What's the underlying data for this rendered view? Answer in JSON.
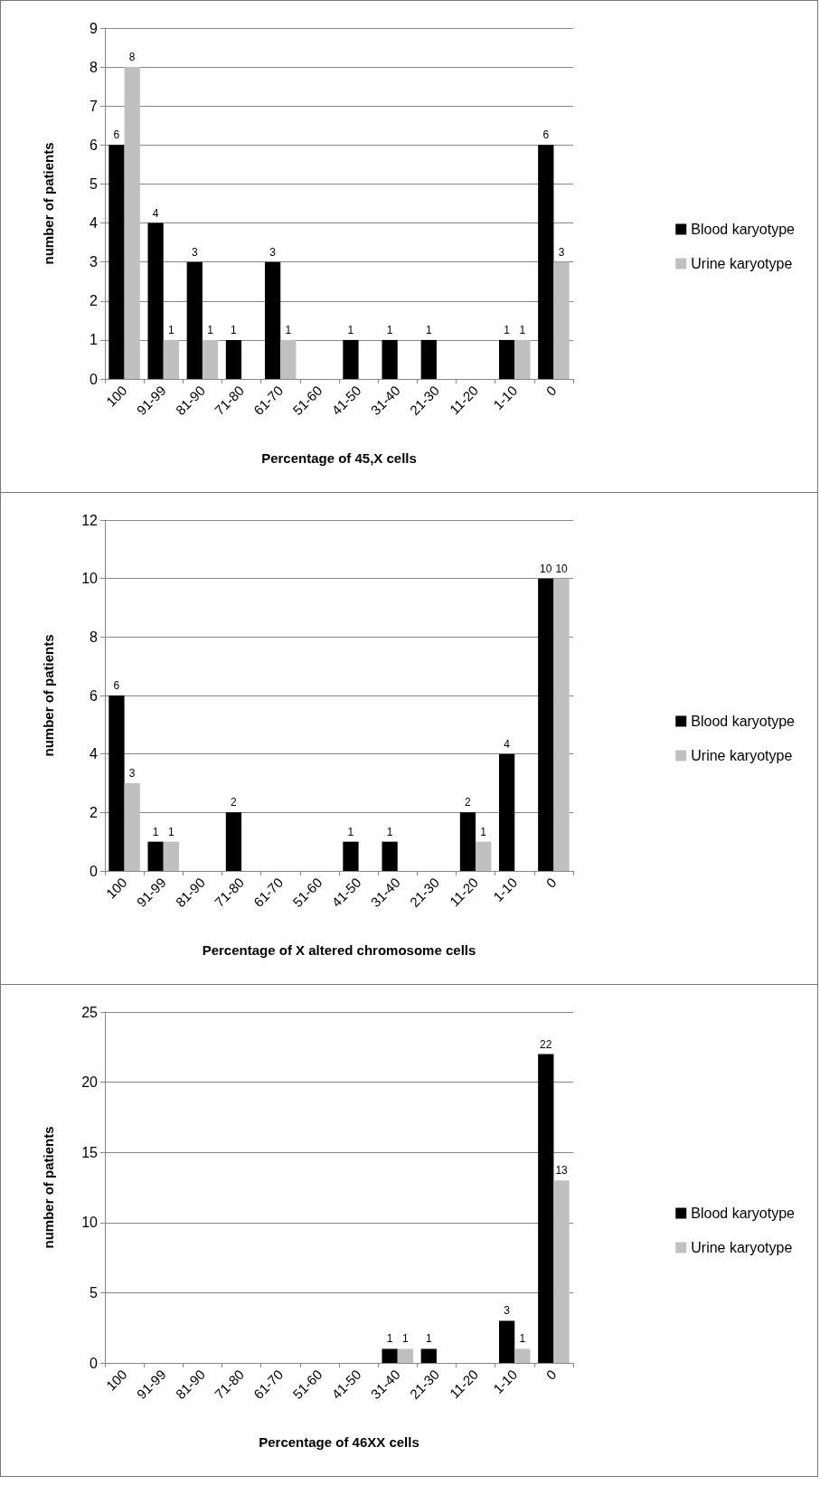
{
  "chart_data": [
    {
      "type": "bar",
      "xlabel": "Percentage of 45,X cells",
      "ylabel": "number of patients",
      "categories": [
        "100",
        "91-99",
        "81-90",
        "71-80",
        "61-70",
        "51-60",
        "41-50",
        "31-40",
        "21-30",
        "11-20",
        "1-10",
        "0"
      ],
      "ylim": [
        0,
        9
      ],
      "yticks": [
        0,
        1,
        2,
        3,
        4,
        5,
        6,
        7,
        8,
        9
      ],
      "grid": "y",
      "legend": "right",
      "series": [
        {
          "name": "Blood karyotype",
          "color": "#000000",
          "values": [
            6,
            4,
            3,
            1,
            3,
            0,
            1,
            1,
            1,
            0,
            1,
            6
          ],
          "value_labels": [
            "6",
            "4",
            "3",
            "1",
            "3",
            null,
            "1",
            "1",
            "1",
            null,
            "1",
            "6"
          ]
        },
        {
          "name": "Urine karyotype",
          "color": "#c0c0c0",
          "values": [
            8,
            1,
            1,
            0,
            1,
            0,
            0,
            0,
            0,
            0,
            1,
            3
          ],
          "value_labels": [
            "8",
            "1",
            "1",
            null,
            "1",
            null,
            null,
            null,
            null,
            null,
            "1",
            "3"
          ]
        }
      ]
    },
    {
      "type": "bar",
      "xlabel": "Percentage of X altered chromosome cells",
      "ylabel": "number of patients",
      "categories": [
        "100",
        "91-99",
        "81-90",
        "71-80",
        "61-70",
        "51-60",
        "41-50",
        "31-40",
        "21-30",
        "11-20",
        "1-10",
        "0"
      ],
      "ylim": [
        0,
        12
      ],
      "yticks": [
        0,
        2,
        4,
        6,
        8,
        10,
        12
      ],
      "grid": "y",
      "legend": "right",
      "series": [
        {
          "name": "Blood karyotype",
          "color": "#000000",
          "values": [
            6,
            1,
            0,
            2,
            0,
            0,
            1,
            1,
            0,
            2,
            4,
            10
          ],
          "value_labels": [
            "6",
            "1",
            null,
            "2",
            null,
            null,
            "1",
            "1",
            null,
            "2",
            "4",
            "10"
          ]
        },
        {
          "name": "Urine karyotype",
          "color": "#c0c0c0",
          "values": [
            3,
            1,
            0,
            0,
            0,
            0,
            0,
            0,
            0,
            1,
            0,
            10
          ],
          "value_labels": [
            "3",
            "1",
            null,
            null,
            null,
            null,
            null,
            null,
            null,
            "1",
            null,
            "10"
          ]
        }
      ]
    },
    {
      "type": "bar",
      "xlabel": "Percentage of 46XX cells",
      "ylabel": "number of patients",
      "categories": [
        "100",
        "91-99",
        "81-90",
        "71-80",
        "61-70",
        "51-60",
        "41-50",
        "31-40",
        "21-30",
        "11-20",
        "1-10",
        "0"
      ],
      "ylim": [
        0,
        25
      ],
      "yticks": [
        0,
        5,
        10,
        15,
        20,
        25
      ],
      "grid": "y",
      "legend": "right",
      "series": [
        {
          "name": "Blood karyotype",
          "color": "#000000",
          "values": [
            0,
            0,
            0,
            0,
            0,
            0,
            0,
            1,
            1,
            0,
            3,
            22
          ],
          "value_labels": [
            null,
            null,
            null,
            null,
            null,
            null,
            null,
            "1",
            "1",
            null,
            "3",
            "22"
          ]
        },
        {
          "name": "Urine karyotype",
          "color": "#c0c0c0",
          "values": [
            0,
            0,
            0,
            0,
            0,
            0,
            0,
            1,
            0,
            0,
            1,
            13
          ],
          "value_labels": [
            null,
            null,
            null,
            null,
            null,
            null,
            null,
            "1",
            null,
            null,
            "1",
            "13"
          ]
        }
      ]
    }
  ]
}
